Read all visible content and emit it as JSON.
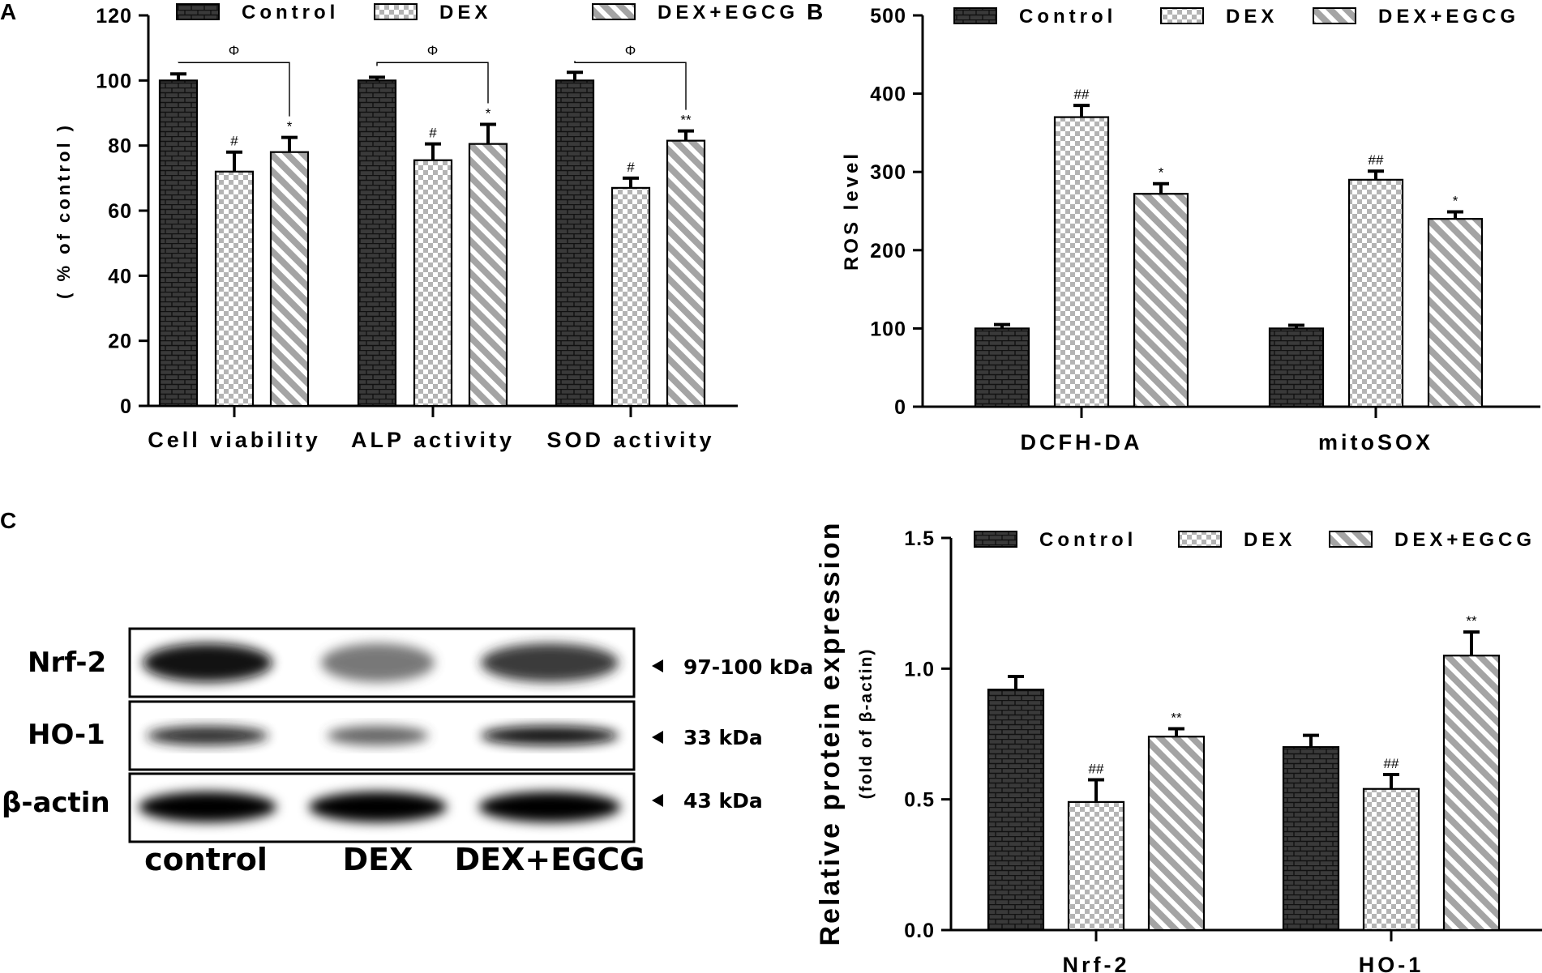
{
  "panels": {
    "A": "A",
    "B": "B",
    "C": "C"
  },
  "legend": {
    "control": "Control",
    "dex": "DEX",
    "dex_egcg": "DEX+EGCG"
  },
  "chart_data": [
    {
      "id": "A",
      "type": "bar",
      "ylabel": "( % of control )",
      "ylim": [
        0,
        120
      ],
      "yticks": [
        0,
        20,
        40,
        60,
        80,
        100,
        120
      ],
      "categories": [
        "Cell viability",
        "ALP activity",
        "SOD activity"
      ],
      "series": [
        {
          "name": "Control",
          "values": [
            100,
            100,
            100
          ],
          "errors": [
            2,
            1,
            2.5
          ]
        },
        {
          "name": "DEX",
          "values": [
            72,
            75.5,
            67
          ],
          "errors": [
            6,
            5,
            3
          ]
        },
        {
          "name": "DEX+EGCG",
          "values": [
            78,
            80.5,
            81.5
          ],
          "errors": [
            4.5,
            6,
            3
          ]
        }
      ],
      "annotations": {
        "DEX": [
          "#",
          "#",
          "#"
        ],
        "DEX+EGCG": [
          "*",
          "*",
          "**"
        ],
        "bracket": [
          "Φ",
          "Φ",
          "Φ"
        ]
      },
      "legend_position": "top"
    },
    {
      "id": "B",
      "type": "bar",
      "ylabel": "ROS level",
      "ylim": [
        0,
        500
      ],
      "yticks": [
        0,
        100,
        200,
        300,
        400,
        500
      ],
      "categories": [
        "DCFH-DA",
        "mitoSOX"
      ],
      "series": [
        {
          "name": "Control",
          "values": [
            100,
            100
          ],
          "errors": [
            5,
            4
          ]
        },
        {
          "name": "DEX",
          "values": [
            370,
            290
          ],
          "errors": [
            15,
            11
          ]
        },
        {
          "name": "DEX+EGCG",
          "values": [
            272,
            240
          ],
          "errors": [
            13,
            9
          ]
        }
      ],
      "annotations": {
        "DEX": [
          "##",
          "##"
        ],
        "DEX+EGCG": [
          "*",
          "*"
        ]
      },
      "legend_position": "top"
    },
    {
      "id": "C",
      "type": "bar",
      "ylabel": "Relative protein expression",
      "ylabel2": "(fold of β-actin)",
      "ylim": [
        0,
        1.5
      ],
      "yticks": [
        "0.0",
        "0.5",
        "1.0",
        "1.5"
      ],
      "categories": [
        "Nrf-2",
        "HO-1"
      ],
      "series": [
        {
          "name": "Control",
          "values": [
            0.92,
            0.7
          ],
          "errors": [
            0.05,
            0.045
          ]
        },
        {
          "name": "DEX",
          "values": [
            0.49,
            0.54
          ],
          "errors": [
            0.085,
            0.055
          ]
        },
        {
          "name": "DEX+EGCG",
          "values": [
            0.74,
            1.05
          ],
          "errors": [
            0.03,
            0.09
          ]
        }
      ],
      "annotations": {
        "DEX": [
          "##",
          "##"
        ],
        "DEX+EGCG": [
          "**",
          "**"
        ]
      },
      "legend_position": "top"
    }
  ],
  "blot": {
    "rows": [
      {
        "label": "Nrf-2",
        "kda": "97-100 kDa"
      },
      {
        "label": "HO-1",
        "kda": "33 kDa"
      },
      {
        "label": "β-actin",
        "kda": "43 kDa"
      }
    ],
    "lanes": [
      "control",
      "DEX",
      "DEX+EGCG"
    ],
    "band_intensity": [
      [
        0.95,
        0.45,
        0.75
      ],
      [
        0.8,
        0.55,
        0.95
      ],
      [
        1.0,
        1.0,
        1.0
      ]
    ]
  }
}
